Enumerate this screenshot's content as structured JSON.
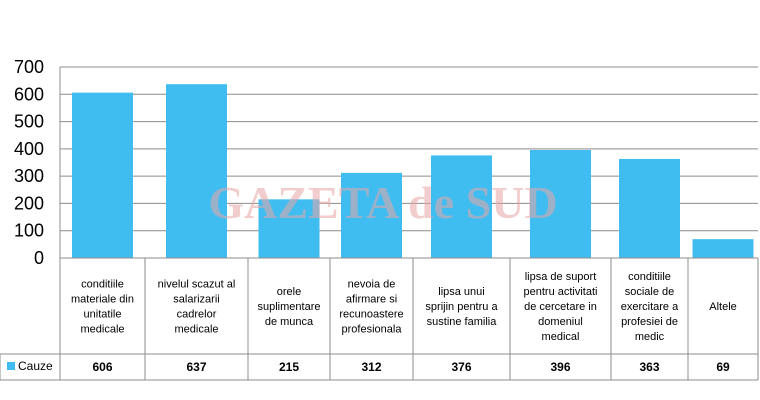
{
  "chart_data": {
    "type": "bar",
    "categories": [
      [
        "conditiile",
        "materiale din",
        "unitatile",
        "medicale"
      ],
      [
        "nivelul scazut al",
        "salarizarii",
        "cadrelor",
        "medicale"
      ],
      [
        "orele",
        "suplimentare",
        "de munca"
      ],
      [
        "nevoia de",
        "afirmare si",
        "recunoastere",
        "profesionala"
      ],
      [
        "lipsa unui",
        "sprijin pentru a",
        "sustine familia"
      ],
      [
        "lipsa de suport",
        "pentru activitati",
        "de cercetare in",
        "domeniul",
        "medical"
      ],
      [
        "conditiile",
        "sociale de",
        "exercitare a",
        "profesiei de",
        "medic"
      ],
      [
        "Altele"
      ]
    ],
    "series": [
      {
        "name": "Cauze",
        "values": [
          606,
          637,
          215,
          312,
          376,
          396,
          363,
          69
        ],
        "color": "#3fbdf0"
      }
    ],
    "value_labels": [
      "606",
      "637",
      "215",
      "312",
      "376",
      "396",
      "363",
      "69"
    ],
    "yticks": [
      "0",
      "100",
      "200",
      "300",
      "400",
      "500",
      "600",
      "700"
    ],
    "ylim": [
      0,
      700
    ],
    "grid": true,
    "legend": "data-table-left",
    "watermark": "GAZETA de SUD"
  }
}
